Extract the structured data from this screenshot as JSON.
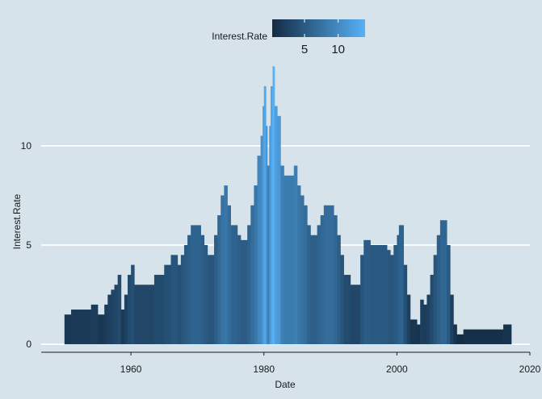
{
  "chart_data": {
    "type": "bar",
    "xlabel": "Date",
    "ylabel": "Interest.Rate",
    "xlim": [
      1946.5,
      2020
    ],
    "ylim": [
      -0.4,
      14.5
    ],
    "x_ticks": [
      1960,
      1980,
      2000,
      2020
    ],
    "y_ticks": [
      0,
      5,
      10
    ],
    "grid": "horizontal major lines, white",
    "legend": {
      "title": "Interest.Rate",
      "position": "top",
      "range": [
        0.2,
        14
      ],
      "ticks": [
        5,
        10
      ],
      "color_low": "#132b43",
      "color_high": "#56b1f7"
    },
    "points": [
      [
        1950.0,
        1.5
      ],
      [
        1951.0,
        1.5
      ],
      [
        1951.0,
        1.75
      ],
      [
        1952.0,
        1.75
      ],
      [
        1953.0,
        1.75
      ],
      [
        1954.0,
        1.75
      ],
      [
        1954.0,
        2.0
      ],
      [
        1955.0,
        2.0
      ],
      [
        1955.0,
        1.5
      ],
      [
        1956.0,
        1.5
      ],
      [
        1956.0,
        2.0
      ],
      [
        1956.5,
        2.5
      ],
      [
        1957.0,
        2.75
      ],
      [
        1957.5,
        3.0
      ],
      [
        1958.0,
        3.5
      ],
      [
        1958.5,
        1.75
      ],
      [
        1959.0,
        2.5
      ],
      [
        1959.5,
        3.5
      ],
      [
        1960.0,
        4.0
      ],
      [
        1960.5,
        3.0
      ],
      [
        1961.0,
        3.0
      ],
      [
        1962.0,
        3.0
      ],
      [
        1963.0,
        3.0
      ],
      [
        1963.5,
        3.5
      ],
      [
        1964.0,
        3.5
      ],
      [
        1965.0,
        4.0
      ],
      [
        1966.0,
        4.5
      ],
      [
        1967.0,
        4.0
      ],
      [
        1967.5,
        4.5
      ],
      [
        1968.0,
        5.0
      ],
      [
        1968.5,
        5.5
      ],
      [
        1969.0,
        6.0
      ],
      [
        1970.0,
        6.0
      ],
      [
        1970.5,
        5.5
      ],
      [
        1971.0,
        5.0
      ],
      [
        1971.5,
        4.5
      ],
      [
        1972.0,
        4.5
      ],
      [
        1972.5,
        5.5
      ],
      [
        1973.0,
        6.5
      ],
      [
        1973.5,
        7.5
      ],
      [
        1974.0,
        8.0
      ],
      [
        1974.5,
        7.0
      ],
      [
        1975.0,
        6.0
      ],
      [
        1975.5,
        6.0
      ],
      [
        1976.0,
        5.5
      ],
      [
        1976.5,
        5.25
      ],
      [
        1977.0,
        5.25
      ],
      [
        1977.5,
        6.0
      ],
      [
        1978.0,
        7.0
      ],
      [
        1978.5,
        8.0
      ],
      [
        1979.0,
        9.5
      ],
      [
        1979.5,
        10.5
      ],
      [
        1979.8,
        12.0
      ],
      [
        1980.0,
        13.0
      ],
      [
        1980.3,
        11.0
      ],
      [
        1980.5,
        9.0
      ],
      [
        1980.8,
        11.0
      ],
      [
        1981.0,
        13.0
      ],
      [
        1981.3,
        14.0
      ],
      [
        1981.6,
        12.0
      ],
      [
        1982.0,
        11.5
      ],
      [
        1982.5,
        9.0
      ],
      [
        1983.0,
        8.5
      ],
      [
        1984.0,
        8.5
      ],
      [
        1984.5,
        9.0
      ],
      [
        1985.0,
        8.0
      ],
      [
        1985.5,
        7.5
      ],
      [
        1986.0,
        7.0
      ],
      [
        1986.5,
        6.0
      ],
      [
        1987.0,
        5.5
      ],
      [
        1988.0,
        6.0
      ],
      [
        1988.5,
        6.5
      ],
      [
        1989.0,
        7.0
      ],
      [
        1990.0,
        7.0
      ],
      [
        1990.5,
        6.5
      ],
      [
        1991.0,
        5.5
      ],
      [
        1991.5,
        4.5
      ],
      [
        1992.0,
        3.5
      ],
      [
        1993.0,
        3.0
      ],
      [
        1994.0,
        3.0
      ],
      [
        1994.5,
        4.5
      ],
      [
        1995.0,
        5.25
      ],
      [
        1996.0,
        5.0
      ],
      [
        1997.0,
        5.0
      ],
      [
        1998.0,
        5.0
      ],
      [
        1998.5,
        4.75
      ],
      [
        1999.0,
        4.5
      ],
      [
        1999.5,
        5.0
      ],
      [
        2000.0,
        5.5
      ],
      [
        2000.3,
        6.0
      ],
      [
        2001.0,
        4.0
      ],
      [
        2001.5,
        2.5
      ],
      [
        2002.0,
        1.25
      ],
      [
        2003.0,
        1.0
      ],
      [
        2003.5,
        2.25
      ],
      [
        2004.0,
        2.0
      ],
      [
        2004.5,
        2.5
      ],
      [
        2005.0,
        3.5
      ],
      [
        2005.5,
        4.5
      ],
      [
        2006.0,
        5.5
      ],
      [
        2006.5,
        6.25
      ],
      [
        2007.0,
        6.25
      ],
      [
        2007.5,
        5.0
      ],
      [
        2008.0,
        2.5
      ],
      [
        2008.5,
        1.0
      ],
      [
        2009.0,
        0.5
      ],
      [
        2010.0,
        0.75
      ],
      [
        2011.0,
        0.75
      ],
      [
        2012.0,
        0.75
      ],
      [
        2013.0,
        0.75
      ],
      [
        2014.0,
        0.75
      ],
      [
        2015.0,
        0.75
      ],
      [
        2016.0,
        1.0
      ],
      [
        2016.7,
        1.0
      ]
    ]
  }
}
